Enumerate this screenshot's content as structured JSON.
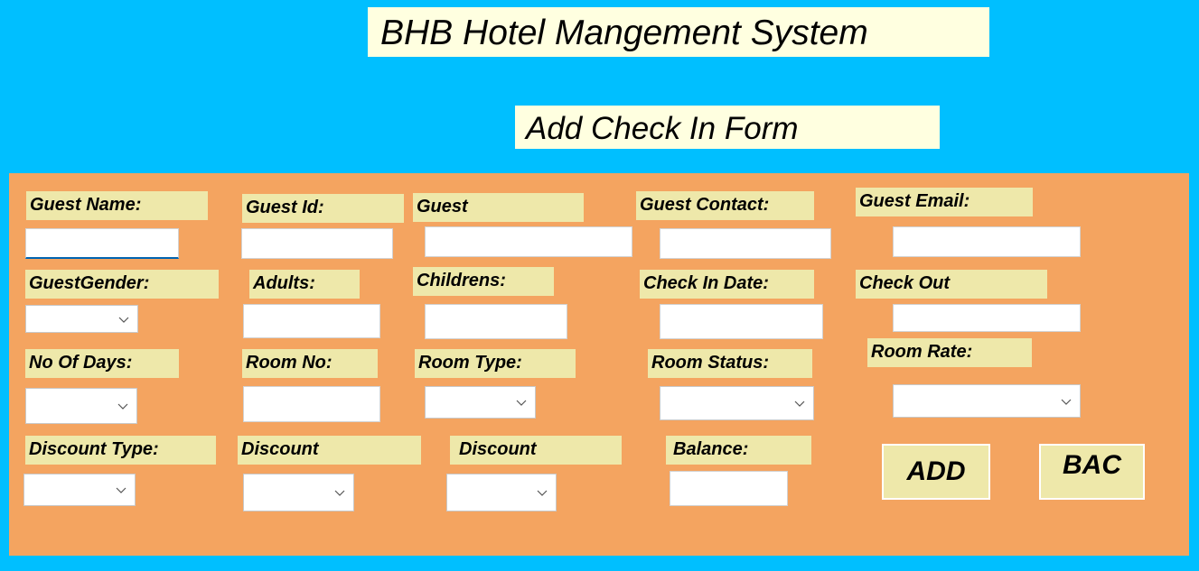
{
  "header": {
    "title": "BHB Hotel Mangement System",
    "subtitle": "Add Check In Form"
  },
  "form": {
    "labels": {
      "guest_name": "Guest Name:",
      "guest_id": "Guest Id:",
      "guest": "Guest",
      "guest_contact": "Guest Contact:",
      "guest_email": "Guest Email:",
      "guest_gender": "GuestGender:",
      "adults": "Adults:",
      "childrens": "Childrens:",
      "check_in_date": "Check In Date:",
      "check_out": "Check Out",
      "no_of_days": "No Of Days:",
      "room_no": "Room No:",
      "room_type": "Room Type:",
      "room_status": "Room Status:",
      "room_rate": "Room Rate:",
      "discount_type": "Discount Type:",
      "discount": "Discount",
      "discount2": "Discount",
      "balance": "Balance:"
    },
    "values": {
      "guest_name": "",
      "guest_id": "",
      "guest": "",
      "guest_contact": "",
      "guest_email": "",
      "adults": "",
      "childrens": "",
      "check_in_date": "",
      "check_out": "",
      "room_no": "",
      "balance": ""
    },
    "buttons": {
      "add": "ADD",
      "back": "BAC"
    }
  },
  "colors": {
    "background": "#00bfff",
    "panel": "#f4a460",
    "label": "#eee8aa",
    "title_bg": "#ffffe0"
  },
  "icons": {
    "dropdown": "chevron-down-icon"
  }
}
